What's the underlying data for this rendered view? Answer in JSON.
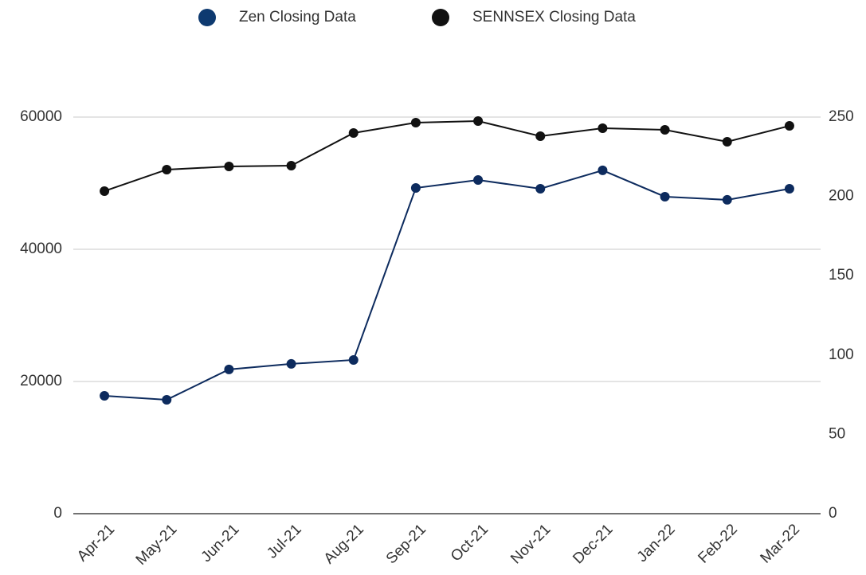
{
  "chart_data": {
    "type": "line",
    "categories": [
      "Apr-21",
      "May-21",
      "Jun-21",
      "Jul-21",
      "Aug-21",
      "Sep-21",
      "Oct-21",
      "Nov-21",
      "Dec-21",
      "Jan-22",
      "Feb-22",
      "Mar-22"
    ],
    "series": [
      {
        "name": "Zen Closing Data",
        "color": "#0d2b5e",
        "axis": "y2",
        "values": [
          74.3,
          71.8,
          90.9,
          94.4,
          96.9,
          205.3,
          210.3,
          204.8,
          216.4,
          199.8,
          197.8,
          204.8
        ]
      },
      {
        "name": "SENNSEX Closing Data",
        "color": "#111111",
        "values": [
          48800,
          52050,
          52530,
          52650,
          57590,
          59160,
          59400,
          57110,
          58310,
          58070,
          56270,
          58670
        ]
      }
    ],
    "ylim": [
      0,
      65000
    ],
    "yticks": [
      0,
      20000,
      40000,
      60000
    ],
    "y2lim": [
      0,
      270.8
    ],
    "y2ticks": [
      0,
      50,
      100,
      150,
      200,
      250
    ],
    "grid": true
  }
}
